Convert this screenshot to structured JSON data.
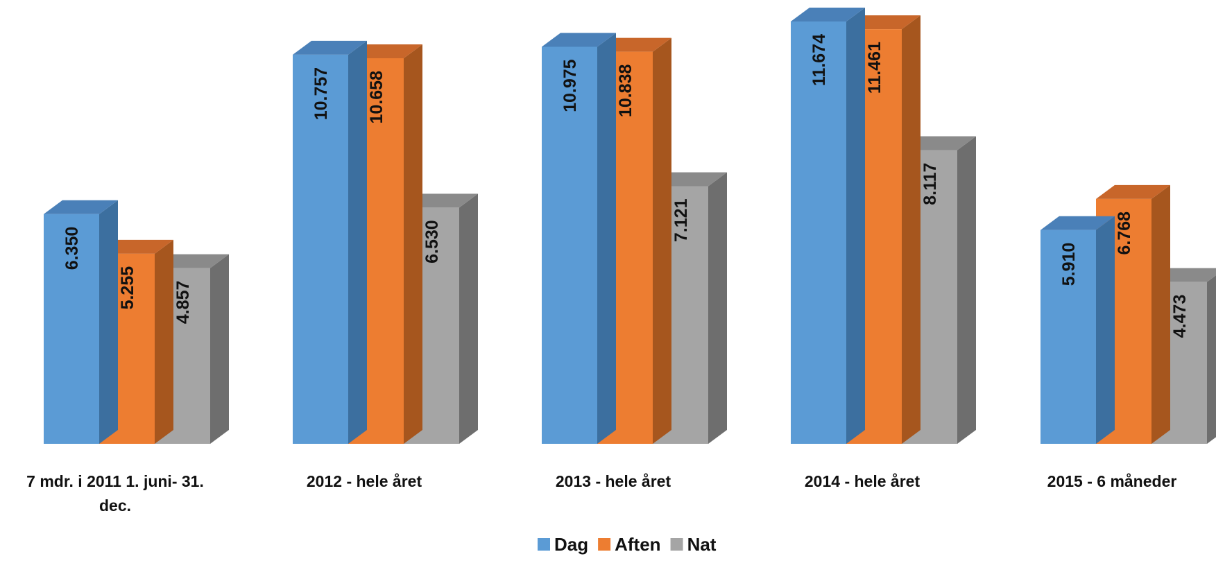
{
  "chart_data": {
    "type": "bar",
    "style": "3d-clustered-column",
    "categories": [
      [
        "7 mdr. i 2011 1. juni- 31.",
        "dec."
      ],
      [
        "2012 - hele året"
      ],
      [
        "2013 - hele året"
      ],
      [
        "2014 - hele året"
      ],
      [
        "2015 - 6 måneder"
      ]
    ],
    "series": [
      {
        "name": "Dag",
        "values": [
          6350,
          10757,
          10975,
          11674,
          5910
        ],
        "labels": [
          "6.350",
          "10.757",
          "10.975",
          "11.674",
          "5.910"
        ]
      },
      {
        "name": "Aften",
        "values": [
          5255,
          10658,
          10838,
          11461,
          6768
        ],
        "labels": [
          "5.255",
          "10.658",
          "10.838",
          "11.461",
          "6.768"
        ]
      },
      {
        "name": "Nat",
        "values": [
          4857,
          6530,
          7121,
          8117,
          4473
        ],
        "labels": [
          "4.857",
          "6.530",
          "7.121",
          "8.117",
          "4.473"
        ]
      }
    ],
    "colors": {
      "Dag": {
        "front": "#5b9bd5",
        "side": "#3c6f9f",
        "top": "#4a80b8"
      },
      "Aften": {
        "front": "#ed7d31",
        "side": "#a6561e",
        "top": "#c8662a"
      },
      "Nat": {
        "front": "#a5a5a5",
        "side": "#6e6e6e",
        "top": "#8a8a8a"
      }
    },
    "ylim": [
      0,
      11674
    ],
    "grid": false,
    "legend_position": "bottom",
    "data_labels": "inside-rotated"
  }
}
